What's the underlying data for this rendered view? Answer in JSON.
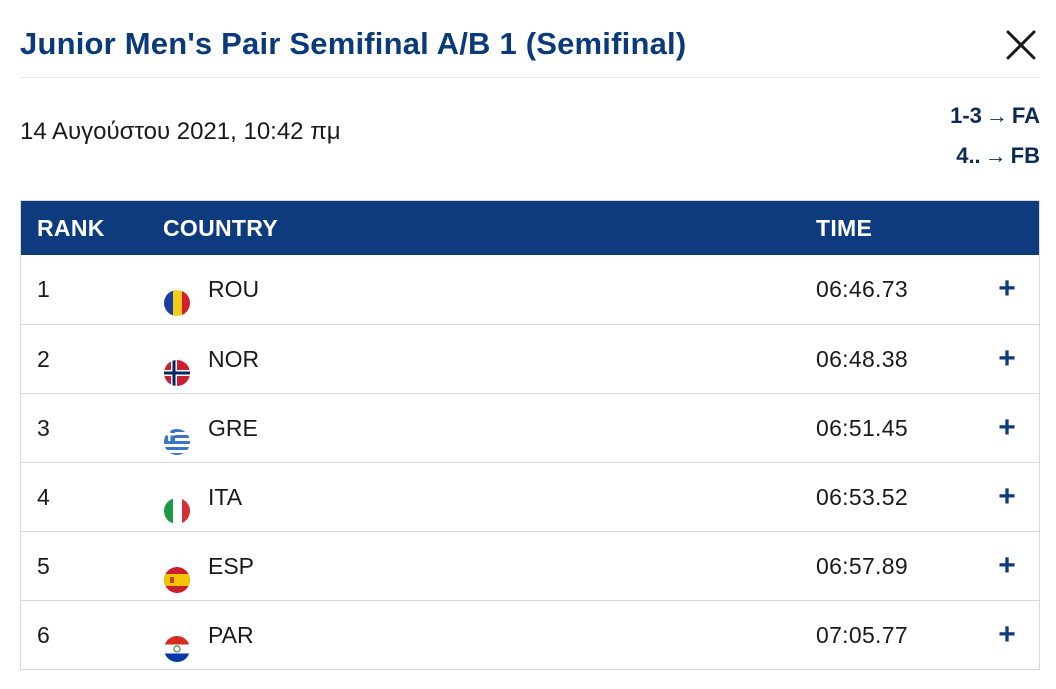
{
  "header": {
    "title": "Junior Men's Pair Semifinal A/B 1 (Semifinal)",
    "close_icon": "close-icon"
  },
  "meta": {
    "date": "14 Αυγούστου 2021, 10:42 πμ",
    "progression": [
      {
        "rank": "1-3",
        "arrow": "→",
        "target": "FA"
      },
      {
        "rank": "4..",
        "arrow": "→",
        "target": "FB"
      }
    ]
  },
  "table": {
    "headers": {
      "rank": "RANK",
      "country": "COUNTRY",
      "time": "TIME"
    },
    "rows": [
      {
        "rank": "1",
        "country": "ROU",
        "time": "06:46.73",
        "flag": "flag-romania-icon",
        "expand": "+"
      },
      {
        "rank": "2",
        "country": "NOR",
        "time": "06:48.38",
        "flag": "flag-norway-icon",
        "expand": "+"
      },
      {
        "rank": "3",
        "country": "GRE",
        "time": "06:51.45",
        "flag": "flag-greece-icon",
        "expand": "+"
      },
      {
        "rank": "4",
        "country": "ITA",
        "time": "06:53.52",
        "flag": "flag-italy-icon",
        "expand": "+"
      },
      {
        "rank": "5",
        "country": "ESP",
        "time": "06:57.89",
        "flag": "flag-spain-icon",
        "expand": "+"
      },
      {
        "rank": "6",
        "country": "PAR",
        "time": "07:05.77",
        "flag": "flag-paraguay-icon",
        "expand": "+"
      }
    ]
  },
  "colors": {
    "title": "#0b3a7a",
    "header_bg": "#0d3b7d",
    "accent": "#0d3b7d"
  }
}
